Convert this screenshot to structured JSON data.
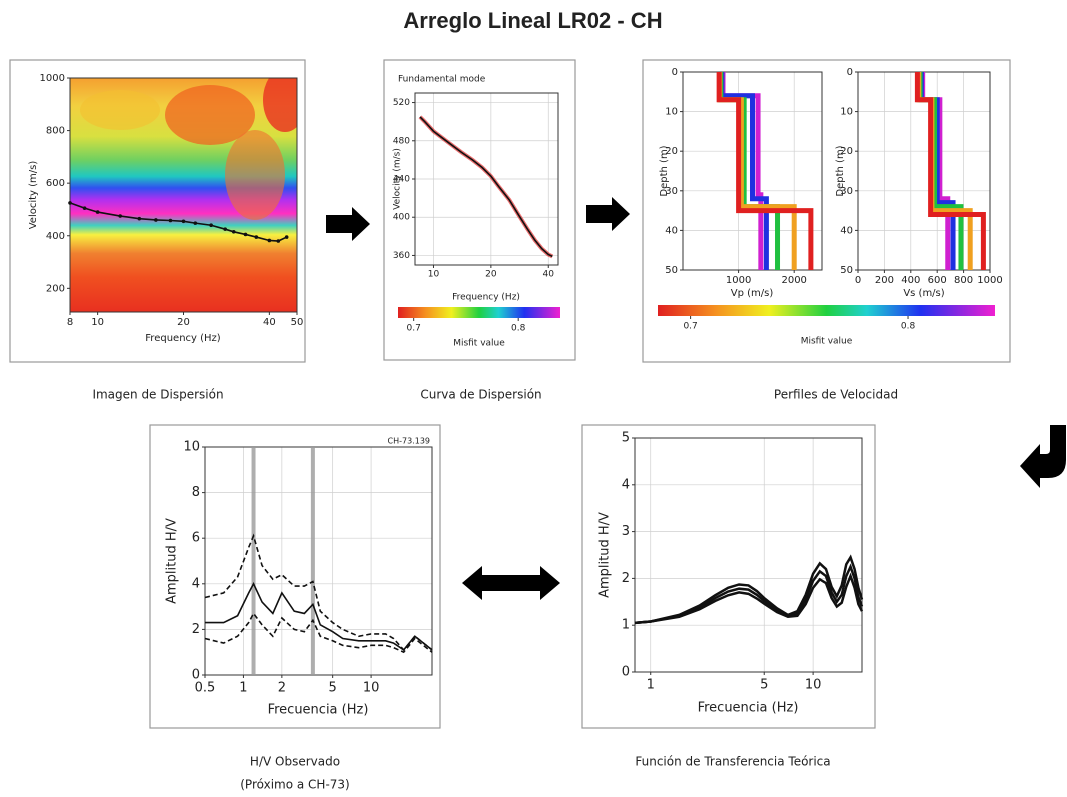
{
  "title": "Arreglo Lineal LR02 - CH",
  "captions": [
    "Imagen de Dispersión",
    "Curva de Dispersión",
    "Perfiles de Velocidad",
    "H/V Observado",
    "(Próximo a CH-73)",
    "Función de Transferencia Teórica"
  ],
  "chart_data": [
    {
      "type": "line",
      "xlabel": "Frequency (Hz)",
      "ylabel": "Velocity (m/s)",
      "xscale": "log",
      "xlim": [
        8,
        50
      ],
      "xticks": [
        8,
        10,
        20,
        40,
        50
      ],
      "ylim": [
        110,
        1000
      ],
      "yticks": [
        200,
        400,
        600,
        800,
        1000
      ],
      "grid": false,
      "series": [
        {
          "color": "#111111",
          "markers": true,
          "x": [
            8,
            9,
            10,
            12,
            14,
            16,
            18,
            20,
            22,
            25,
            28,
            30,
            33,
            36,
            40,
            43,
            46
          ],
          "values": [
            525,
            505,
            490,
            475,
            465,
            460,
            458,
            455,
            448,
            440,
            425,
            415,
            405,
            395,
            382,
            380,
            395
          ]
        }
      ]
    },
    {
      "type": "line",
      "title": "Fundamental mode",
      "xlabel": "Frequency (Hz)",
      "ylabel": "Velocity (m/s)",
      "xscale": "log",
      "xlim": [
        8,
        45
      ],
      "xticks": [
        10,
        20,
        40
      ],
      "ylim": [
        350,
        530
      ],
      "yticks": [
        360,
        400,
        440,
        480,
        520
      ],
      "grid": true,
      "series": [
        {
          "color": "#111111",
          "halo": "#e03030",
          "x": [
            8.5,
            9,
            10,
            12,
            14,
            16,
            18,
            20,
            22,
            25,
            28,
            31,
            34,
            37,
            40,
            42
          ],
          "values": [
            505,
            500,
            490,
            478,
            468,
            460,
            452,
            443,
            432,
            418,
            402,
            388,
            376,
            367,
            361,
            359
          ]
        }
      ],
      "colorbar": {
        "label": "Misfit value",
        "lim": [
          0.685,
          0.84
        ],
        "ticks": [
          0.7,
          0.8
        ]
      }
    },
    {
      "type": "profile",
      "xlabel": "Vp (m/s)",
      "ylabel": "Depth (m)",
      "xlim": [
        0,
        2500
      ],
      "xticks": [
        1000,
        2000
      ],
      "ylim": [
        0,
        50
      ],
      "y_inverted": true,
      "yticks": [
        0,
        10,
        20,
        30,
        40,
        50
      ],
      "grid": true,
      "series": [
        {
          "color": "#d020d0",
          "depth": [
            0,
            6,
            6,
            31,
            31,
            50
          ],
          "values": [
            720,
            720,
            1350,
            1350,
            1400,
            1400
          ]
        },
        {
          "color": "#2030e0",
          "depth": [
            0,
            6,
            6,
            32,
            32,
            50
          ],
          "values": [
            700,
            700,
            1250,
            1250,
            1500,
            1500
          ]
        },
        {
          "color": "#20c040",
          "depth": [
            0,
            7,
            7,
            34,
            34,
            50
          ],
          "values": [
            680,
            680,
            1100,
            1100,
            1700,
            1700
          ]
        },
        {
          "color": "#f0a020",
          "depth": [
            0,
            7,
            7,
            34,
            34,
            50
          ],
          "values": [
            660,
            660,
            1050,
            1050,
            2000,
            2000
          ]
        },
        {
          "color": "#e02020",
          "depth": [
            0,
            7,
            7,
            35,
            35,
            50
          ],
          "values": [
            650,
            650,
            1000,
            1000,
            2300,
            2300
          ]
        }
      ],
      "colorbar": {
        "label": "Misfit value",
        "lim": [
          0.685,
          0.84
        ],
        "ticks": [
          0.7,
          0.8
        ]
      }
    },
    {
      "type": "profile",
      "xlabel": "Vs (m/s)",
      "ylabel": "Depth (m)",
      "xlim": [
        0,
        1000
      ],
      "xticks": [
        0,
        200,
        400,
        600,
        800,
        1000
      ],
      "ylim": [
        0,
        50
      ],
      "y_inverted": true,
      "yticks": [
        0,
        10,
        20,
        30,
        40,
        50
      ],
      "grid": true,
      "series": [
        {
          "color": "#d020d0",
          "depth": [
            0,
            7,
            7,
            32,
            32,
            50
          ],
          "values": [
            490,
            490,
            620,
            620,
            680,
            680
          ]
        },
        {
          "color": "#2030e0",
          "depth": [
            0,
            7,
            7,
            33,
            33,
            50
          ],
          "values": [
            480,
            480,
            600,
            600,
            720,
            720
          ]
        },
        {
          "color": "#20c040",
          "depth": [
            0,
            7,
            7,
            34,
            34,
            50
          ],
          "values": [
            470,
            470,
            580,
            580,
            780,
            780
          ]
        },
        {
          "color": "#f0a020",
          "depth": [
            0,
            7,
            7,
            35,
            35,
            50
          ],
          "values": [
            460,
            460,
            560,
            560,
            850,
            850
          ]
        },
        {
          "color": "#e02020",
          "depth": [
            0,
            7,
            7,
            36,
            36,
            50
          ],
          "values": [
            450,
            450,
            550,
            550,
            950,
            950
          ]
        }
      ]
    },
    {
      "type": "line",
      "xlabel": "Frecuencia (Hz)",
      "ylabel": "Amplitud H/V",
      "note": "CH-73.139",
      "xscale": "log",
      "xlim": [
        0.5,
        30
      ],
      "xticks": [
        0.5,
        1,
        2,
        5,
        10
      ],
      "ylim": [
        0,
        10
      ],
      "yticks": [
        0,
        2,
        4,
        6,
        8,
        10
      ],
      "grid": true,
      "vlines": [
        1.2,
        3.5
      ],
      "series": [
        {
          "color": "#111111",
          "dash": false,
          "x": [
            0.5,
            0.7,
            0.9,
            1.1,
            1.2,
            1.4,
            1.7,
            2,
            2.5,
            3,
            3.5,
            4,
            5,
            6,
            8,
            10,
            13,
            15,
            18,
            22,
            30
          ],
          "values": [
            2.3,
            2.3,
            2.6,
            3.6,
            4.0,
            3.2,
            2.7,
            3.6,
            2.8,
            2.7,
            3.1,
            2.2,
            1.9,
            1.6,
            1.5,
            1.5,
            1.5,
            1.4,
            1.1,
            1.7,
            1.1
          ]
        },
        {
          "color": "#111111",
          "dash": true,
          "x": [
            0.5,
            0.7,
            0.9,
            1.1,
            1.2,
            1.4,
            1.7,
            2,
            2.5,
            3,
            3.5,
            4,
            5,
            6,
            8,
            10,
            13,
            15,
            18,
            22,
            30
          ],
          "values": [
            3.4,
            3.6,
            4.3,
            5.6,
            6.1,
            4.8,
            4.2,
            4.4,
            3.9,
            3.9,
            4.1,
            2.8,
            2.3,
            2.0,
            1.7,
            1.8,
            1.8,
            1.6,
            1.1,
            1.7,
            1.1
          ]
        },
        {
          "color": "#111111",
          "dash": true,
          "x": [
            0.5,
            0.7,
            0.9,
            1.1,
            1.2,
            1.4,
            1.7,
            2,
            2.5,
            3,
            3.5,
            4,
            5,
            6,
            8,
            10,
            13,
            15,
            18,
            22,
            30
          ],
          "values": [
            1.6,
            1.4,
            1.7,
            2.3,
            2.7,
            2.2,
            1.7,
            2.5,
            2.0,
            1.9,
            2.4,
            1.7,
            1.5,
            1.3,
            1.2,
            1.3,
            1.3,
            1.2,
            1.0,
            1.6,
            1.0
          ]
        }
      ]
    },
    {
      "type": "line",
      "xlabel": "Frecuencia (Hz)",
      "ylabel": "Amplitud H/V",
      "xscale": "log",
      "xlim": [
        0.8,
        20
      ],
      "xticks": [
        1,
        5,
        10
      ],
      "ylim": [
        0,
        5
      ],
      "yticks": [
        0,
        1,
        2,
        3,
        4,
        5
      ],
      "grid": true,
      "series": [
        {
          "color": "#111111",
          "x": [
            0.8,
            1,
            1.5,
            2,
            2.5,
            3,
            3.5,
            4,
            4.5,
            5,
            6,
            7,
            8,
            9,
            10,
            11,
            12,
            13,
            14,
            15,
            16,
            17,
            18,
            19,
            20
          ],
          "values": [
            1.05,
            1.08,
            1.22,
            1.42,
            1.64,
            1.8,
            1.87,
            1.85,
            1.73,
            1.58,
            1.36,
            1.22,
            1.3,
            1.65,
            2.1,
            2.32,
            2.2,
            1.82,
            1.62,
            1.85,
            2.3,
            2.45,
            2.2,
            1.8,
            1.55
          ]
        },
        {
          "color": "#111111",
          "x": [
            0.8,
            1,
            1.5,
            2,
            2.5,
            3,
            3.5,
            4,
            4.5,
            5,
            6,
            7,
            8,
            9,
            10,
            11,
            12,
            13,
            14,
            15,
            16,
            17,
            18,
            19,
            20
          ],
          "values": [
            1.05,
            1.08,
            1.2,
            1.38,
            1.58,
            1.72,
            1.78,
            1.76,
            1.65,
            1.52,
            1.32,
            1.2,
            1.25,
            1.55,
            1.95,
            2.15,
            2.05,
            1.7,
            1.5,
            1.65,
            2.05,
            2.25,
            2.0,
            1.6,
            1.4
          ]
        },
        {
          "color": "#111111",
          "x": [
            0.8,
            1,
            1.5,
            2,
            2.5,
            3,
            3.5,
            4,
            4.5,
            5,
            6,
            7,
            8,
            9,
            10,
            11,
            12,
            13,
            14,
            15,
            16,
            17,
            18,
            19,
            20
          ],
          "values": [
            1.05,
            1.08,
            1.18,
            1.34,
            1.52,
            1.64,
            1.7,
            1.67,
            1.57,
            1.46,
            1.28,
            1.18,
            1.2,
            1.45,
            1.8,
            1.98,
            1.9,
            1.58,
            1.4,
            1.48,
            1.82,
            2.05,
            1.8,
            1.45,
            1.3
          ]
        }
      ]
    }
  ]
}
